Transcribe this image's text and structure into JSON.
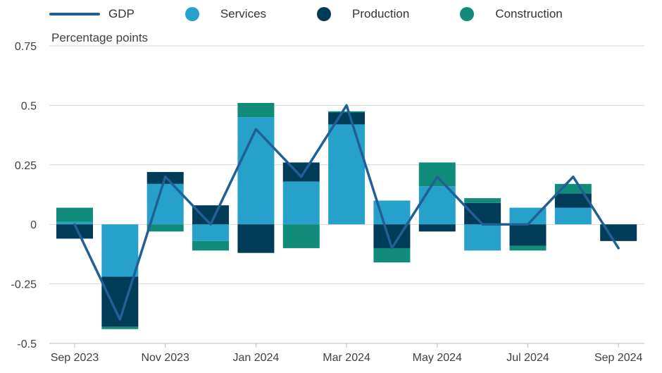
{
  "chart_data": {
    "type": "bar",
    "title": "",
    "ylabel": "Percentage points",
    "xlabel": "",
    "ylim": [
      -0.5,
      0.75
    ],
    "yticks": [
      -0.5,
      -0.25,
      0,
      0.25,
      0.5,
      0.75
    ],
    "ytick_labels": [
      "-0.5",
      "-0.25",
      "0",
      "0.25",
      "0.5",
      "0.75"
    ],
    "categories": [
      "Sep 2023",
      "Oct 2023",
      "Nov 2023",
      "Dec 2023",
      "Jan 2024",
      "Feb 2024",
      "Mar 2024",
      "Apr 2024",
      "May 2024",
      "Jun 2024",
      "Jul 2024",
      "Aug 2024",
      "Sep 2024"
    ],
    "xtick_labels": [
      "Sep 2023",
      "",
      "Nov 2023",
      "",
      "Jan 2024",
      "",
      "Mar 2024",
      "",
      "May 2024",
      "",
      "Jul 2024",
      "",
      "Sep 2024"
    ],
    "stacked": true,
    "series": [
      {
        "name": "Services",
        "color": "#27a0cc",
        "values": [
          0.01,
          -0.22,
          0.17,
          -0.07,
          0.45,
          0.18,
          0.42,
          0.1,
          0.16,
          -0.11,
          0.07,
          0.07,
          0.0
        ]
      },
      {
        "name": "Production",
        "color": "#003c57",
        "values": [
          -0.06,
          -0.21,
          0.05,
          0.08,
          -0.12,
          0.08,
          0.05,
          -0.1,
          -0.03,
          0.09,
          -0.09,
          0.06,
          -0.07
        ]
      },
      {
        "name": "Construction",
        "color": "#118c7b",
        "values": [
          0.06,
          -0.01,
          -0.03,
          -0.04,
          0.06,
          -0.1,
          0.005,
          -0.06,
          0.1,
          0.02,
          -0.02,
          0.04,
          0.0
        ]
      }
    ],
    "line": {
      "name": "GDP",
      "color": "#206095",
      "values": [
        0.0,
        -0.4,
        0.2,
        0.0,
        0.4,
        0.2,
        0.5,
        -0.1,
        0.2,
        0.0,
        0.0,
        0.2,
        -0.1
      ]
    },
    "legend_position": "top-left",
    "grid": true
  },
  "legend": {
    "gdp": "GDP",
    "services": "Services",
    "production": "Production",
    "construction": "Construction"
  }
}
